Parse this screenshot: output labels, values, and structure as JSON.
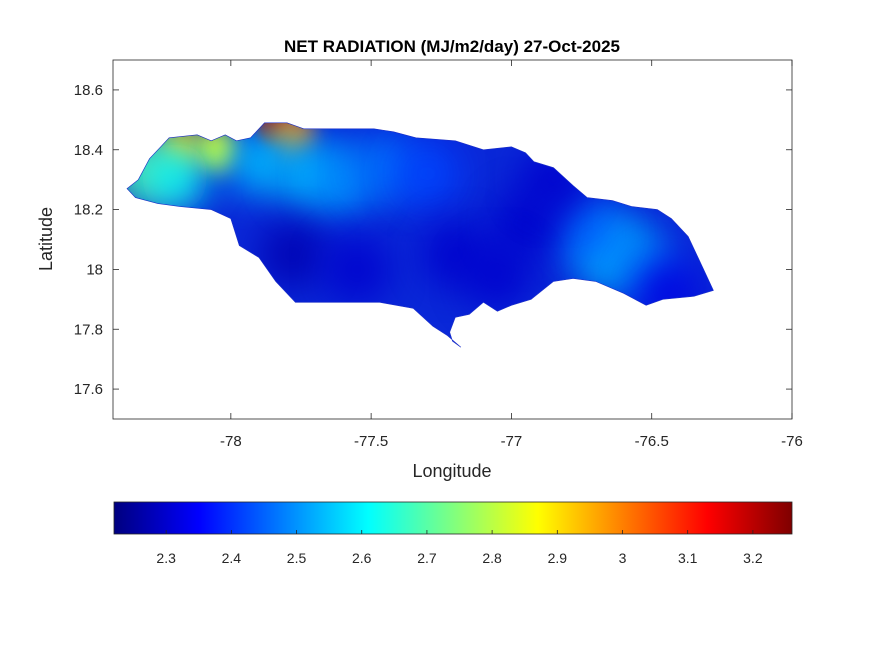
{
  "chart_data": {
    "type": "heatmap",
    "title": "NET RADIATION (MJ/m2/day) 27-Oct-2025",
    "xlabel": "Longitude",
    "ylabel": "Latitude",
    "xlim": [
      -78.42,
      -76.0
    ],
    "ylim": [
      17.5,
      18.7
    ],
    "xticks": [
      -78,
      -77.5,
      -77,
      -76.5,
      -76
    ],
    "xtick_labels": [
      "-78",
      "-77.5",
      "-77",
      "-76.5",
      "-76"
    ],
    "yticks": [
      17.6,
      17.8,
      18,
      18.2,
      18.4,
      18.6
    ],
    "ytick_labels": [
      "17.6",
      "17.8",
      "18",
      "18.2",
      "18.4",
      "18.6"
    ],
    "colormap": "jet",
    "colorbar": {
      "range": [
        2.22,
        3.26
      ],
      "ticks": [
        2.3,
        2.4,
        2.5,
        2.6,
        2.7,
        2.8,
        2.9,
        3.0,
        3.1,
        3.2
      ],
      "tick_labels": [
        "2.3",
        "2.4",
        "2.5",
        "2.6",
        "2.7",
        "2.8",
        "2.9",
        "3",
        "3.1",
        "3.2"
      ],
      "orientation": "horizontal"
    },
    "region_outline": [
      [
        -78.37,
        18.27
      ],
      [
        -78.33,
        18.3
      ],
      [
        -78.29,
        18.37
      ],
      [
        -78.25,
        18.41
      ],
      [
        -78.22,
        18.44
      ],
      [
        -78.12,
        18.45
      ],
      [
        -78.07,
        18.43
      ],
      [
        -78.02,
        18.45
      ],
      [
        -77.98,
        18.43
      ],
      [
        -77.93,
        18.44
      ],
      [
        -77.88,
        18.49
      ],
      [
        -77.8,
        18.49
      ],
      [
        -77.74,
        18.47
      ],
      [
        -77.62,
        18.47
      ],
      [
        -77.49,
        18.47
      ],
      [
        -77.42,
        18.46
      ],
      [
        -77.34,
        18.44
      ],
      [
        -77.2,
        18.43
      ],
      [
        -77.1,
        18.4
      ],
      [
        -77.0,
        18.41
      ],
      [
        -76.95,
        18.39
      ],
      [
        -76.92,
        18.36
      ],
      [
        -76.85,
        18.34
      ],
      [
        -76.78,
        18.28
      ],
      [
        -76.73,
        18.24
      ],
      [
        -76.64,
        18.23
      ],
      [
        -76.57,
        18.21
      ],
      [
        -76.48,
        18.2
      ],
      [
        -76.43,
        18.17
      ],
      [
        -76.37,
        18.11
      ],
      [
        -76.33,
        18.03
      ],
      [
        -76.3,
        17.97
      ],
      [
        -76.28,
        17.93
      ],
      [
        -76.35,
        17.91
      ],
      [
        -76.46,
        17.9
      ],
      [
        -76.52,
        17.88
      ],
      [
        -76.6,
        17.92
      ],
      [
        -76.7,
        17.96
      ],
      [
        -76.78,
        17.97
      ],
      [
        -76.85,
        17.96
      ],
      [
        -76.93,
        17.9
      ],
      [
        -77.0,
        17.88
      ],
      [
        -77.05,
        17.86
      ],
      [
        -77.1,
        17.89
      ],
      [
        -77.15,
        17.85
      ],
      [
        -77.2,
        17.84
      ],
      [
        -77.22,
        17.79
      ],
      [
        -77.21,
        17.76
      ],
      [
        -77.18,
        17.74
      ],
      [
        -77.23,
        17.78
      ],
      [
        -77.28,
        17.81
      ],
      [
        -77.35,
        17.87
      ],
      [
        -77.47,
        17.89
      ],
      [
        -77.6,
        17.89
      ],
      [
        -77.68,
        17.89
      ],
      [
        -77.77,
        17.89
      ],
      [
        -77.84,
        17.96
      ],
      [
        -77.9,
        18.04
      ],
      [
        -77.97,
        18.08
      ],
      [
        -78.0,
        18.17
      ],
      [
        -78.07,
        18.2
      ],
      [
        -78.18,
        18.21
      ],
      [
        -78.26,
        18.22
      ],
      [
        -78.34,
        18.24
      ]
    ],
    "features": [
      {
        "lon": -77.85,
        "lat": 18.47,
        "value": 3.22
      },
      {
        "lon": -77.78,
        "lat": 18.45,
        "value": 3.0
      },
      {
        "lon": -78.18,
        "lat": 18.41,
        "value": 2.95
      },
      {
        "lon": -78.05,
        "lat": 18.4,
        "value": 2.85
      },
      {
        "lon": -78.3,
        "lat": 18.33,
        "value": 2.72
      },
      {
        "lon": -78.2,
        "lat": 18.31,
        "value": 2.62
      },
      {
        "lon": -77.9,
        "lat": 18.36,
        "value": 2.55
      },
      {
        "lon": -77.72,
        "lat": 18.32,
        "value": 2.55
      },
      {
        "lon": -77.6,
        "lat": 18.3,
        "value": 2.5
      },
      {
        "lon": -77.45,
        "lat": 18.34,
        "value": 2.47
      },
      {
        "lon": -77.3,
        "lat": 18.32,
        "value": 2.42
      },
      {
        "lon": -76.65,
        "lat": 18.06,
        "value": 2.58
      },
      {
        "lon": -76.55,
        "lat": 18.02,
        "value": 2.5
      },
      {
        "lon": -76.72,
        "lat": 18.12,
        "value": 2.45
      },
      {
        "lon": -77.78,
        "lat": 18.05,
        "value": 2.27
      },
      {
        "lon": -77.55,
        "lat": 18.0,
        "value": 2.3
      },
      {
        "lon": -77.2,
        "lat": 18.05,
        "value": 2.3
      },
      {
        "lon": -76.95,
        "lat": 18.15,
        "value": 2.3
      },
      {
        "lon": -77.05,
        "lat": 17.98,
        "value": 2.3
      },
      {
        "lon": -76.45,
        "lat": 17.93,
        "value": 2.32
      },
      {
        "lon": -76.85,
        "lat": 18.3,
        "value": 2.3
      }
    ]
  }
}
